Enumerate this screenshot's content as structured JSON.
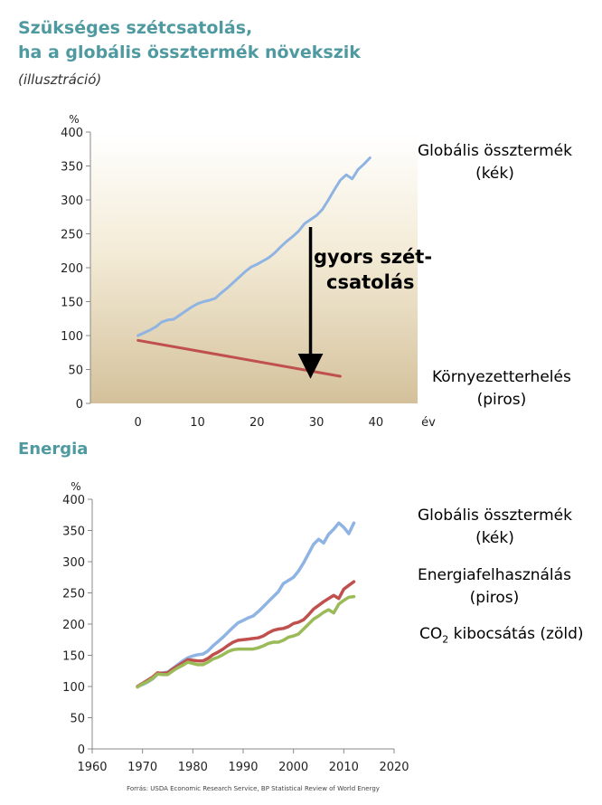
{
  "header": {
    "title_line1": "Szükséges szétcsatolás,",
    "title_line2": "ha a globális össztermék növekszik",
    "subtitle": "(illusztráció)"
  },
  "section2": {
    "title": "Energia"
  },
  "source": "Forrás: USDA Economic Research Service, BP Statistical Review of World Energy",
  "chart_data": [
    {
      "type": "line",
      "ylabel": "%",
      "xlabel": "év",
      "x_ticks": [
        0,
        10,
        20,
        30,
        40
      ],
      "y_ticks": [
        0,
        50,
        100,
        150,
        200,
        250,
        300,
        350,
        400
      ],
      "xlim": [
        -8,
        47
      ],
      "ylim": [
        0,
        400
      ],
      "grid": false,
      "background": "gradient (cream to tan)",
      "legend": [
        {
          "line1": "Globális össztermék",
          "line2": "(kék)"
        },
        {
          "line1": "Környezetterhelés",
          "line2": "(piros)"
        }
      ],
      "annotation": {
        "line1": "gyors szét-",
        "line2": "csatolás",
        "arrow_from_y": 260,
        "arrow_to_y": 55,
        "arrow_x": 29
      },
      "series": [
        {
          "color": "#8fb4e3",
          "x": [
            0,
            1,
            2,
            3,
            4,
            5,
            6,
            7,
            8,
            9,
            10,
            11,
            12,
            13,
            14,
            15,
            16,
            17,
            18,
            19,
            20,
            21,
            22,
            23,
            24,
            25,
            26,
            27,
            28,
            29,
            30,
            31,
            32,
            33,
            34,
            35,
            36,
            37,
            38,
            39
          ],
          "y": [
            100,
            104,
            108,
            113,
            120,
            123,
            124,
            130,
            136,
            142,
            147,
            150,
            152,
            155,
            163,
            170,
            178,
            186,
            194,
            201,
            205,
            210,
            215,
            222,
            231,
            239,
            246,
            254,
            265,
            271,
            277,
            286,
            300,
            315,
            329,
            337,
            331,
            345,
            353,
            362
          ]
        },
        {
          "color": "#c0504d",
          "x": [
            0,
            34
          ],
          "y": [
            93,
            40
          ]
        }
      ]
    },
    {
      "type": "line",
      "ylabel": "%",
      "x_ticks": [
        1960,
        1970,
        1980,
        1990,
        2000,
        2010,
        2020
      ],
      "y_ticks": [
        0,
        50,
        100,
        150,
        200,
        250,
        300,
        350,
        400
      ],
      "xlim": [
        1960,
        2020
      ],
      "ylim": [
        0,
        400
      ],
      "grid": false,
      "legend": [
        {
          "line1": "Globális össztermék",
          "line2": "(kék)"
        },
        {
          "line1": "Energiafelhasználás",
          "line2": "(piros)"
        },
        {
          "prefix": "CO",
          "sub": "2",
          "suffix": " kibocsátás (zöld)"
        }
      ],
      "series": [
        {
          "color": "#8fb4e3",
          "x": [
            1969,
            1970,
            1971,
            1972,
            1973,
            1974,
            1975,
            1976,
            1977,
            1978,
            1979,
            1980,
            1981,
            1982,
            1983,
            1984,
            1985,
            1986,
            1987,
            1988,
            1989,
            1990,
            1991,
            1992,
            1993,
            1994,
            1995,
            1996,
            1997,
            1998,
            1999,
            2000,
            2001,
            2002,
            2003,
            2004,
            2005,
            2006,
            2007,
            2008,
            2009,
            2010,
            2011,
            2012
          ],
          "y": [
            100,
            103,
            107,
            112,
            120,
            122,
            123,
            129,
            135,
            141,
            146,
            149,
            151,
            152,
            157,
            165,
            172,
            179,
            187,
            195,
            202,
            206,
            210,
            213,
            220,
            228,
            236,
            244,
            252,
            265,
            270,
            275,
            285,
            298,
            313,
            328,
            336,
            330,
            344,
            352,
            362,
            355,
            345,
            362
          ]
        },
        {
          "color": "#c0504d",
          "x": [
            1969,
            1970,
            1971,
            1972,
            1973,
            1974,
            1975,
            1976,
            1977,
            1978,
            1979,
            1980,
            1981,
            1982,
            1983,
            1984,
            1985,
            1986,
            1987,
            1988,
            1989,
            1990,
            1991,
            1992,
            1993,
            1994,
            1995,
            1996,
            1997,
            1998,
            1999,
            2000,
            2001,
            2002,
            2003,
            2004,
            2005,
            2006,
            2007,
            2008,
            2009,
            2010,
            2011,
            2012
          ],
          "y": [
            100,
            105,
            110,
            115,
            122,
            121,
            122,
            128,
            133,
            138,
            143,
            142,
            141,
            141,
            145,
            151,
            155,
            160,
            166,
            171,
            174,
            175,
            176,
            177,
            178,
            181,
            186,
            190,
            192,
            193,
            196,
            201,
            203,
            207,
            215,
            224,
            230,
            236,
            241,
            246,
            241,
            256,
            262,
            268
          ]
        },
        {
          "color": "#9bbb59",
          "x": [
            1969,
            1970,
            1971,
            1972,
            1973,
            1974,
            1975,
            1976,
            1977,
            1978,
            1979,
            1980,
            1981,
            1982,
            1983,
            1984,
            1985,
            1986,
            1987,
            1988,
            1989,
            1990,
            1991,
            1992,
            1993,
            1994,
            1995,
            1996,
            1997,
            1998,
            1999,
            2000,
            2001,
            2002,
            2003,
            2004,
            2005,
            2006,
            2007,
            2008,
            2009,
            2010,
            2011,
            2012
          ],
          "y": [
            99,
            104,
            108,
            113,
            120,
            119,
            119,
            125,
            130,
            134,
            139,
            137,
            135,
            135,
            139,
            144,
            147,
            151,
            156,
            159,
            160,
            160,
            160,
            160,
            162,
            165,
            169,
            171,
            171,
            174,
            179,
            181,
            184,
            192,
            200,
            208,
            213,
            219,
            223,
            218,
            232,
            238,
            243,
            244
          ]
        }
      ]
    }
  ]
}
